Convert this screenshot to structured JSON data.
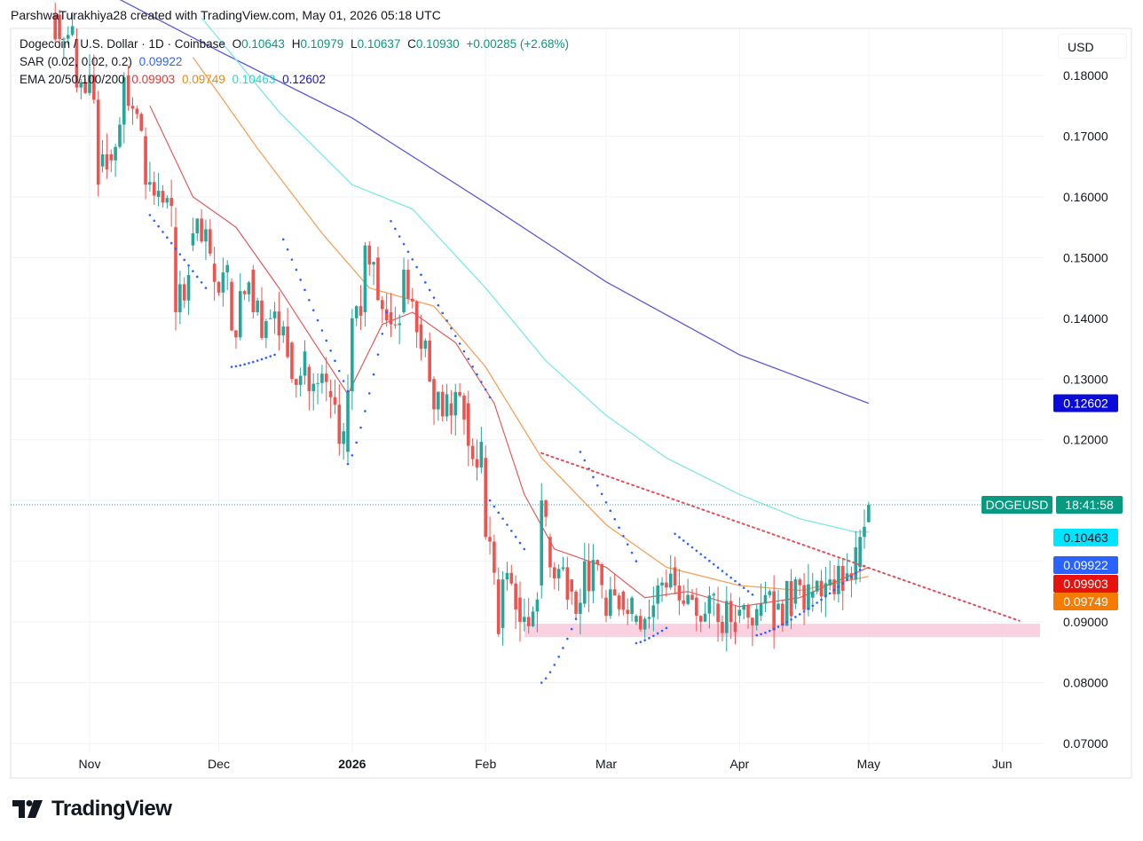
{
  "header": {
    "credit": "ParshwaTurakhiya28 created with TradingView.com, May 01, 2026 05:18 UTC"
  },
  "legend": {
    "symbol": "Dogecoin / U.S. Dollar · 1D · Coinbase",
    "ohlc": {
      "o_label": "O",
      "o": "0.10643",
      "h_label": "H",
      "h": "0.10979",
      "l_label": "L",
      "l": "0.10637",
      "c_label": "C",
      "c": "0.10930",
      "change": "+0.00285 (+2.68%)"
    },
    "sar_label": "SAR (0.02, 0.02, 0.2)",
    "sar_value": "0.09922",
    "ema_label": "EMA 20/50/100/200",
    "ema_values": [
      "0.09903",
      "0.09749",
      "0.10463",
      "0.12602"
    ]
  },
  "currency_button": "USD",
  "price_scale_labels": [
    "0.18000",
    "0.17000",
    "0.16000",
    "0.15000",
    "0.14000",
    "0.13000",
    "0.12000",
    "0.09000",
    "0.08000",
    "0.07000"
  ],
  "time_labels": [
    "Nov",
    "Dec",
    "2026",
    "Feb",
    "Mar",
    "Apr",
    "May",
    "Jun"
  ],
  "badges": {
    "ema200": "0.12602",
    "symbol_tag": "DOGEUSD",
    "countdown": "18:41:58",
    "ema100": "0.10463",
    "sar": "0.09922",
    "ema20": "0.09903",
    "ema50": "0.09749"
  },
  "colors": {
    "up": "#26a69a",
    "down": "#ef5350",
    "ema20": "#e05c5c",
    "ema50": "#f2a25c",
    "ema100": "#7ee8e4",
    "ema200": "#5b5bd6",
    "sar": "#2962ff",
    "support_zone": "#f8c9dc",
    "trendline": "#e0505a"
  },
  "footer": {
    "brand": "TradingView",
    "logo_icon": "tradingview-logo-icon"
  },
  "chart_data": {
    "type": "candlestick",
    "title": "Dogecoin / U.S. Dollar · 1D · Coinbase",
    "timeframe": "1D",
    "ylim": [
      0.07,
      0.185
    ],
    "x_range": [
      "2025-10-24",
      "2026-06-04"
    ],
    "x_ticks": [
      "Nov",
      "Dec",
      "2026",
      "Feb",
      "Mar",
      "Apr",
      "May",
      "Jun"
    ],
    "y_ticks": [
      0.07,
      0.08,
      0.09,
      0.12,
      0.13,
      0.14,
      0.15,
      0.16,
      0.17,
      0.18
    ],
    "candles_sampled": [
      {
        "date": "2025-10-25",
        "o": 0.19,
        "c": 0.186
      },
      {
        "date": "2025-10-29",
        "o": 0.186,
        "c": 0.178
      },
      {
        "date": "2025-11-03",
        "o": 0.176,
        "c": 0.162
      },
      {
        "date": "2025-11-04",
        "o": 0.165,
        "c": 0.167
      },
      {
        "date": "2025-11-06",
        "o": 0.167,
        "c": 0.166
      },
      {
        "date": "2025-11-10",
        "o": 0.18,
        "c": 0.175
      },
      {
        "date": "2025-11-14",
        "o": 0.17,
        "c": 0.162
      },
      {
        "date": "2025-11-17",
        "o": 0.16,
        "c": 0.161
      },
      {
        "date": "2025-11-21",
        "o": 0.155,
        "c": 0.141
      },
      {
        "date": "2025-11-25",
        "o": 0.152,
        "c": 0.154
      },
      {
        "date": "2025-11-30",
        "o": 0.149,
        "c": 0.146
      },
      {
        "date": "2025-12-04",
        "o": 0.146,
        "c": 0.138
      },
      {
        "date": "2025-12-09",
        "o": 0.148,
        "c": 0.141
      },
      {
        "date": "2025-12-13",
        "o": 0.14,
        "c": 0.14
      },
      {
        "date": "2025-12-18",
        "o": 0.136,
        "c": 0.13
      },
      {
        "date": "2025-12-22",
        "o": 0.132,
        "c": 0.128
      },
      {
        "date": "2025-12-27",
        "o": 0.128,
        "c": 0.127
      },
      {
        "date": "2025-12-31",
        "o": 0.118,
        "c": 0.128
      },
      {
        "date": "2026-01-01",
        "o": 0.128,
        "c": 0.14
      },
      {
        "date": "2026-01-04",
        "o": 0.141,
        "c": 0.152
      },
      {
        "date": "2026-01-07",
        "o": 0.15,
        "c": 0.143
      },
      {
        "date": "2026-01-10",
        "o": 0.141,
        "c": 0.139
      },
      {
        "date": "2026-01-13",
        "o": 0.141,
        "c": 0.148
      },
      {
        "date": "2026-01-17",
        "o": 0.139,
        "c": 0.135
      },
      {
        "date": "2026-01-20",
        "o": 0.13,
        "c": 0.125
      },
      {
        "date": "2026-01-24",
        "o": 0.126,
        "c": 0.124
      },
      {
        "date": "2026-01-28",
        "o": 0.126,
        "c": 0.119
      },
      {
        "date": "2026-02-01",
        "o": 0.117,
        "c": 0.104
      },
      {
        "date": "2026-02-04",
        "o": 0.097,
        "c": 0.088
      },
      {
        "date": "2026-02-05",
        "o": 0.089,
        "c": 0.097
      },
      {
        "date": "2026-02-09",
        "o": 0.094,
        "c": 0.09
      },
      {
        "date": "2026-02-14",
        "o": 0.096,
        "c": 0.11
      },
      {
        "date": "2026-02-16",
        "o": 0.104,
        "c": 0.099
      },
      {
        "date": "2026-02-21",
        "o": 0.097,
        "c": 0.095
      },
      {
        "date": "2026-02-24",
        "o": 0.093,
        "c": 0.1
      },
      {
        "date": "2026-03-01",
        "o": 0.094,
        "c": 0.091
      },
      {
        "date": "2026-03-05",
        "o": 0.095,
        "c": 0.092
      },
      {
        "date": "2026-03-08",
        "o": 0.09,
        "c": 0.091
      },
      {
        "date": "2026-03-13",
        "o": 0.093,
        "c": 0.096
      },
      {
        "date": "2026-03-17",
        "o": 0.099,
        "c": 0.096
      },
      {
        "date": "2026-03-22",
        "o": 0.094,
        "c": 0.091
      },
      {
        "date": "2026-03-27",
        "o": 0.093,
        "c": 0.09
      },
      {
        "date": "2026-04-01",
        "o": 0.091,
        "c": 0.092
      },
      {
        "date": "2026-04-06",
        "o": 0.091,
        "c": 0.093
      },
      {
        "date": "2026-04-10",
        "o": 0.092,
        "c": 0.093
      },
      {
        "date": "2026-04-14",
        "o": 0.093,
        "c": 0.097
      },
      {
        "date": "2026-04-18",
        "o": 0.094,
        "c": 0.095
      },
      {
        "date": "2026-04-22",
        "o": 0.096,
        "c": 0.097
      },
      {
        "date": "2026-04-26",
        "o": 0.097,
        "c": 0.098
      },
      {
        "date": "2026-04-29",
        "o": 0.099,
        "c": 0.104
      },
      {
        "date": "2026-05-01",
        "o": 0.10643,
        "h": 0.10979,
        "l": 0.10637,
        "c": 0.1093
      }
    ],
    "ema": [
      {
        "name": "EMA 20",
        "last": 0.09903
      },
      {
        "name": "EMA 50",
        "last": 0.09749
      },
      {
        "name": "EMA 100",
        "last": 0.10463
      },
      {
        "name": "EMA 200",
        "last": 0.12602
      }
    ],
    "sar_last": 0.09922,
    "support_zone": [
      0.0875,
      0.0897
    ],
    "trendline": [
      {
        "date": "2026-02-14",
        "y": 0.1178
      },
      {
        "date": "2026-06-05",
        "y": 0.0902
      }
    ],
    "last_price": 0.1093
  }
}
